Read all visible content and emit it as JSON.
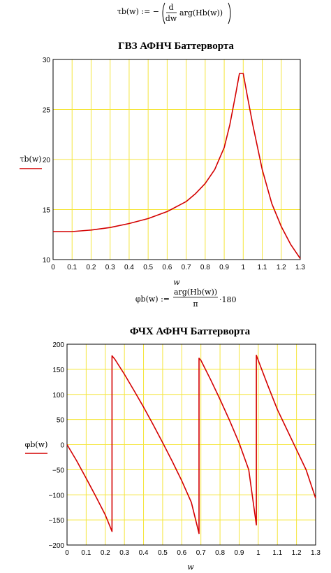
{
  "formulas": {
    "tau_def": {
      "lhs": "τb(w) := −",
      "num": "d",
      "den": "dw",
      "rhs": "arg(Hb(w))"
    },
    "phi_def": {
      "lhs": "φb(w) :=",
      "num": "arg(Hb(w))",
      "den": "π",
      "rhs": "·180"
    }
  },
  "colors": {
    "grid": "#f5e63c",
    "series": "#d40000",
    "axis": "#000000"
  },
  "chart_data": [
    {
      "type": "line",
      "title": "ГВЗ АФНЧ Баттерворта",
      "xlabel": "w",
      "ylabel": "τb(w)",
      "xlim": [
        0,
        1.3
      ],
      "ylim": [
        10,
        30
      ],
      "xticks": [
        0,
        0.1,
        0.2,
        0.3,
        0.4,
        0.5,
        0.6,
        0.7,
        0.8,
        0.9,
        1,
        1.1,
        1.2,
        1.3
      ],
      "xtick_labels": [
        "0",
        "0.1",
        "0.2",
        "0.3",
        "0.4",
        "0.5",
        "0.6",
        "0.7",
        "0.8",
        "0.9",
        "1",
        "1.1",
        "1.2",
        "1.3"
      ],
      "yticks": [
        10,
        15,
        20,
        25,
        30
      ],
      "ytick_labels": [
        "10",
        "15",
        "20",
        "25",
        "30"
      ],
      "grid": true,
      "series": [
        {
          "x": [
            0,
            0.1,
            0.2,
            0.3,
            0.4,
            0.5,
            0.6,
            0.7,
            0.75,
            0.8,
            0.85,
            0.9,
            0.93,
            0.96,
            0.98,
            1.0,
            1.02,
            1.05,
            1.1,
            1.15,
            1.2,
            1.25,
            1.3
          ],
          "y": [
            12.8,
            12.8,
            12.95,
            13.2,
            13.6,
            14.1,
            14.8,
            15.8,
            16.6,
            17.6,
            19.0,
            21.2,
            23.5,
            26.5,
            28.6,
            28.6,
            26.5,
            23.5,
            19.0,
            15.6,
            13.3,
            11.5,
            10.1
          ]
        }
      ]
    },
    {
      "type": "line",
      "title": "ФЧХ АФНЧ Баттерворта",
      "xlabel": "w",
      "ylabel": "φb(w)",
      "xlim": [
        0,
        1.3
      ],
      "ylim": [
        -200,
        200
      ],
      "xticks": [
        0,
        0.1,
        0.2,
        0.3,
        0.4,
        0.5,
        0.6,
        0.7,
        0.8,
        0.9,
        1,
        1.1,
        1.2,
        1.3
      ],
      "xtick_labels": [
        "0",
        "0.1",
        "0.2",
        "0.3",
        "0.4",
        "0.5",
        "0.6",
        "0.7",
        "0.8",
        "0.9",
        "1",
        "1.1",
        "1.2",
        "1.3"
      ],
      "yticks": [
        -200,
        -150,
        -100,
        -50,
        0,
        50,
        100,
        150,
        200
      ],
      "ytick_labels": [
        "−200",
        "−150",
        "−100",
        "−50",
        "0",
        "50",
        "100",
        "150",
        "200"
      ],
      "grid": true,
      "series": [
        {
          "x": [
            0,
            0.05,
            0.1,
            0.15,
            0.2,
            0.235,
            0.235,
            0.25,
            0.3,
            0.35,
            0.4,
            0.45,
            0.5,
            0.55,
            0.6,
            0.65,
            0.69,
            0.69,
            0.7,
            0.75,
            0.8,
            0.85,
            0.9,
            0.95,
            0.99,
            0.99,
            1.0,
            1.05,
            1.1,
            1.15,
            1.2,
            1.25,
            1.3
          ],
          "y": [
            0,
            -32,
            -67,
            -103,
            -140,
            -173,
            177,
            170,
            140,
            108,
            75,
            40,
            4,
            -33,
            -72,
            -115,
            -177,
            172,
            168,
            130,
            90,
            48,
            3,
            -50,
            -160,
            178,
            168,
            118,
            70,
            30,
            -10,
            -50,
            -107
          ]
        }
      ]
    }
  ]
}
